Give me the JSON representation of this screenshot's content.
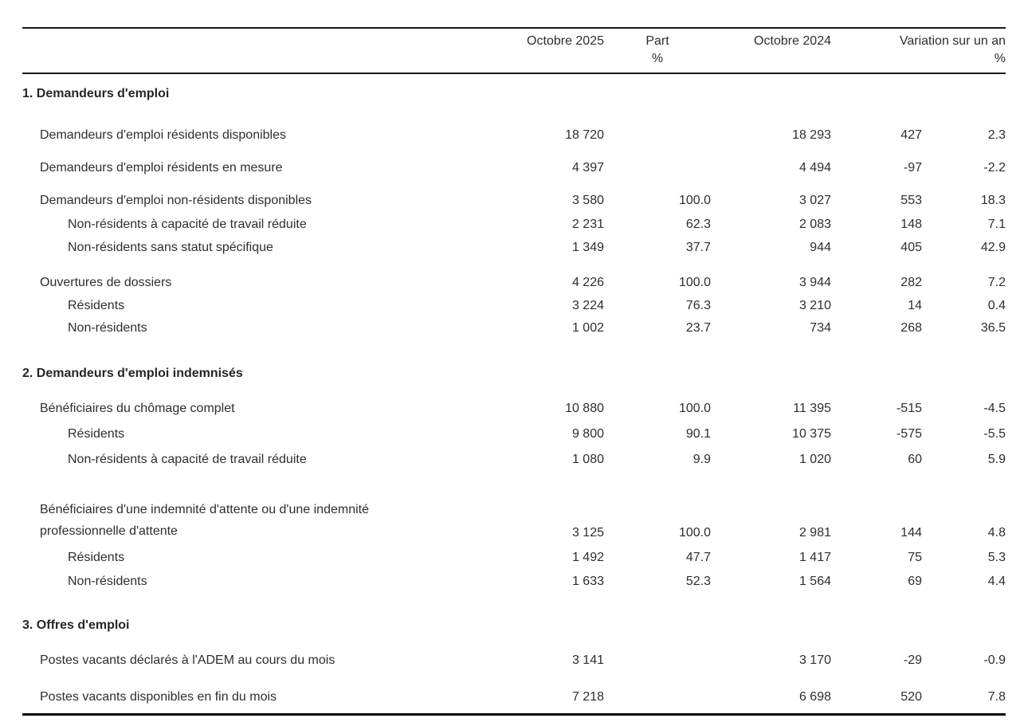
{
  "table": {
    "header": {
      "col_2025": "Octobre 2025",
      "col_part": "Part",
      "col_part_unit": "%",
      "col_2024": "Octobre 2024",
      "col_variation": "Variation sur un an",
      "col_variation_unit": "%"
    },
    "sections": [
      {
        "title": "1. Demandeurs d'emploi",
        "rows": [
          {
            "label": "Demandeurs d'emploi résidents disponibles",
            "v2025": "18 720",
            "part": "",
            "v2024": "18 293",
            "var_abs": "427",
            "var_pct": "2.3"
          },
          {
            "label": "Demandeurs d'emploi résidents en mesure",
            "v2025": "4 397",
            "part": "",
            "v2024": "4 494",
            "var_abs": "-97",
            "var_pct": "-2.2"
          },
          {
            "label": "Demandeurs d'emploi non-résidents disponibles",
            "v2025": "3 580",
            "part": "100.0",
            "v2024": "3 027",
            "var_abs": "553",
            "var_pct": "18.3"
          },
          {
            "label": "Non-résidents à capacité de travail réduite",
            "v2025": "2 231",
            "part": "62.3",
            "v2024": "2 083",
            "var_abs": "148",
            "var_pct": "7.1"
          },
          {
            "label": "Non-résidents sans statut spécifique",
            "v2025": "1 349",
            "part": "37.7",
            "v2024": "944",
            "var_abs": "405",
            "var_pct": "42.9"
          },
          {
            "label": "Ouvertures de dossiers",
            "v2025": "4 226",
            "part": "100.0",
            "v2024": "3 944",
            "var_abs": "282",
            "var_pct": "7.2"
          },
          {
            "label": "Résidents",
            "v2025": "3 224",
            "part": "76.3",
            "v2024": "3 210",
            "var_abs": "14",
            "var_pct": "0.4"
          },
          {
            "label": "Non-résidents",
            "v2025": "1 002",
            "part": "23.7",
            "v2024": "734",
            "var_abs": "268",
            "var_pct": "36.5"
          }
        ]
      },
      {
        "title": "2. Demandeurs d'emploi indemnisés",
        "rows": [
          {
            "label": "Bénéficiaires du chômage complet",
            "v2025": "10 880",
            "part": "100.0",
            "v2024": "11 395",
            "var_abs": "-515",
            "var_pct": "-4.5"
          },
          {
            "label": "Résidents",
            "v2025": "9 800",
            "part": "90.1",
            "v2024": "10 375",
            "var_abs": "-575",
            "var_pct": "-5.5"
          },
          {
            "label": "Non-résidents à capacité de travail réduite",
            "v2025": "1 080",
            "part": "9.9",
            "v2024": "1 020",
            "var_abs": "60",
            "var_pct": "5.9"
          },
          {
            "label": "Bénéficiaires d'une indemnité d'attente ou d'une indemnité",
            "label2": "professionnelle d'attente",
            "v2025": "3 125",
            "part": "100.0",
            "v2024": "2 981",
            "var_abs": "144",
            "var_pct": "4.8"
          },
          {
            "label": "Résidents",
            "v2025": "1 492",
            "part": "47.7",
            "v2024": "1 417",
            "var_abs": "75",
            "var_pct": "5.3"
          },
          {
            "label": "Non-résidents",
            "v2025": "1 633",
            "part": "52.3",
            "v2024": "1 564",
            "var_abs": "69",
            "var_pct": "4.4"
          }
        ]
      },
      {
        "title": "3. Offres d'emploi",
        "rows": [
          {
            "label": "Postes vacants déclarés à l'ADEM au cours du mois",
            "v2025": "3 141",
            "part": "",
            "v2024": "3 170",
            "var_abs": "-29",
            "var_pct": "-0.9"
          },
          {
            "label": "Postes vacants disponibles en fin du mois",
            "v2025": "7 218",
            "part": "",
            "v2024": "6 698",
            "var_abs": "520",
            "var_pct": "7.8"
          }
        ]
      }
    ]
  }
}
